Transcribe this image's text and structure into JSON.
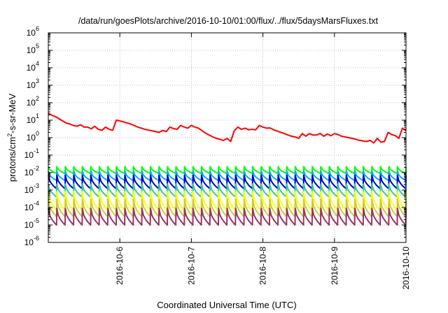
{
  "chart_data": {
    "type": "line",
    "title": "/data/run/goesPlots/archive/2016-10-10/01:00/flux/../flux/5daysMarsFluxes.txt",
    "xlabel": "Coordinated Universal Time (UTC)",
    "ylabel": {
      "prefix": "protons/cm",
      "sup": "2",
      "suffix": "-s-sr-MeV"
    },
    "xlim": [
      "2016-10-05T00:00",
      "2016-10-10T00:00"
    ],
    "ylim": [
      1e-06,
      1000000.0
    ],
    "yscale": "log",
    "grid": true,
    "x_ticks": [
      {
        "label": "2016-10-6",
        "value": "2016-10-06T00:00"
      },
      {
        "label": "2016-10-7",
        "value": "2016-10-07T00:00"
      },
      {
        "label": "2016-10-8",
        "value": "2016-10-08T00:00"
      },
      {
        "label": "2016-10-9",
        "value": "2016-10-09T00:00"
      },
      {
        "label": "2016-10-10",
        "value": "2016-10-10T00:00"
      }
    ],
    "y_ticks": [
      {
        "base": "10",
        "exp": "-6",
        "value": 1e-06
      },
      {
        "base": "10",
        "exp": "-5",
        "value": 1e-05
      },
      {
        "base": "10",
        "exp": "-4",
        "value": 0.0001
      },
      {
        "base": "10",
        "exp": "-3",
        "value": 0.001
      },
      {
        "base": "10",
        "exp": "-2",
        "value": 0.01
      },
      {
        "base": "10",
        "exp": "-1",
        "value": 0.1
      },
      {
        "base": "10",
        "exp": "0",
        "value": 1
      },
      {
        "base": "10",
        "exp": "1",
        "value": 10
      },
      {
        "base": "10",
        "exp": "2",
        "value": 100
      },
      {
        "base": "10",
        "exp": "3",
        "value": 1000
      },
      {
        "base": "10",
        "exp": "4",
        "value": 10000
      },
      {
        "base": "10",
        "exp": "5",
        "value": 100000
      },
      {
        "base": "10",
        "exp": "6",
        "value": 1000000
      }
    ],
    "series": [
      {
        "color": "#ff0000",
        "style": "line",
        "x": [
          "2016-10-05T00:00",
          "2016-10-05T01:12",
          "2016-10-05T02:24",
          "2016-10-05T03:36",
          "2016-10-05T04:48",
          "2016-10-05T06:00",
          "2016-10-05T07:12",
          "2016-10-05T08:24",
          "2016-10-05T09:36",
          "2016-10-05T10:48",
          "2016-10-05T12:00",
          "2016-10-05T13:12",
          "2016-10-05T14:24",
          "2016-10-05T15:36",
          "2016-10-05T16:48",
          "2016-10-05T18:00",
          "2016-10-05T19:12",
          "2016-10-05T20:24",
          "2016-10-05T21:36",
          "2016-10-05T22:48",
          "2016-10-06T00:00",
          "2016-10-06T01:12",
          "2016-10-06T02:24",
          "2016-10-06T03:36",
          "2016-10-06T04:48",
          "2016-10-06T06:00",
          "2016-10-06T07:12",
          "2016-10-06T08:24",
          "2016-10-06T09:36",
          "2016-10-06T10:48",
          "2016-10-06T12:00",
          "2016-10-06T13:12",
          "2016-10-06T14:24",
          "2016-10-06T15:36",
          "2016-10-06T16:48",
          "2016-10-06T18:00",
          "2016-10-06T19:12",
          "2016-10-06T20:24",
          "2016-10-06T21:36",
          "2016-10-06T22:48",
          "2016-10-07T00:00",
          "2016-10-07T01:12",
          "2016-10-07T02:24",
          "2016-10-07T03:36",
          "2016-10-07T04:48",
          "2016-10-07T06:00",
          "2016-10-07T07:12",
          "2016-10-07T08:24",
          "2016-10-07T09:36",
          "2016-10-07T10:48",
          "2016-10-07T12:00",
          "2016-10-07T13:12",
          "2016-10-07T14:24",
          "2016-10-07T15:36",
          "2016-10-07T16:48",
          "2016-10-07T18:00",
          "2016-10-07T19:12",
          "2016-10-07T20:24",
          "2016-10-07T21:36",
          "2016-10-07T22:48",
          "2016-10-08T00:00",
          "2016-10-08T01:12",
          "2016-10-08T02:24",
          "2016-10-08T03:36",
          "2016-10-08T04:48",
          "2016-10-08T06:00",
          "2016-10-08T07:12",
          "2016-10-08T08:24",
          "2016-10-08T09:36",
          "2016-10-08T10:48",
          "2016-10-08T12:00",
          "2016-10-08T13:12",
          "2016-10-08T14:24",
          "2016-10-08T15:36",
          "2016-10-08T16:48",
          "2016-10-08T18:00",
          "2016-10-08T19:12",
          "2016-10-08T20:24",
          "2016-10-08T21:36",
          "2016-10-08T22:48",
          "2016-10-09T00:00",
          "2016-10-09T01:12",
          "2016-10-09T02:24",
          "2016-10-09T03:36",
          "2016-10-09T04:48",
          "2016-10-09T06:00",
          "2016-10-09T07:12",
          "2016-10-09T08:24",
          "2016-10-09T09:36",
          "2016-10-09T10:48",
          "2016-10-09T12:00",
          "2016-10-09T13:12",
          "2016-10-09T14:24",
          "2016-10-09T15:36",
          "2016-10-09T16:48",
          "2016-10-09T18:00",
          "2016-10-09T19:12",
          "2016-10-09T20:24",
          "2016-10-09T21:36",
          "2016-10-09T22:48",
          "2016-10-10T00:00"
        ],
        "values": [
          25,
          19,
          16,
          12,
          9,
          7,
          6,
          5,
          4.5,
          5.5,
          4,
          4,
          3.2,
          4.5,
          3,
          2.6,
          4,
          3,
          2.6,
          10,
          9,
          8,
          7,
          6,
          5,
          4,
          3.5,
          3,
          2.7,
          2.5,
          2.2,
          2,
          2.6,
          2.2,
          4,
          3.3,
          3,
          5,
          4,
          3.5,
          5,
          4,
          3.5,
          2.5,
          1.8,
          1.4,
          1.1,
          0.9,
          0.8,
          0.7,
          0.9,
          0.6,
          2.5,
          4,
          3,
          3.5,
          2.8,
          3,
          2.8,
          5,
          4,
          3.5,
          3.6,
          2.8,
          2.4,
          2,
          1.7,
          1.4,
          1.2,
          1.1,
          0.9,
          1.7,
          1.2,
          1.7,
          1.4,
          1.4,
          1.7,
          1.2,
          1.6,
          1.3,
          1.7,
          1.5,
          1.2,
          1.1,
          1,
          0.9,
          0.8,
          0.7,
          0.65,
          0.6,
          0.7,
          0.5,
          0.9,
          0.55,
          0.6,
          2,
          1.5,
          1.3,
          0.9,
          3.5,
          2.5
        ]
      },
      {
        "color": "#00ff00",
        "style": "sawtooth",
        "peaks": 42,
        "y_low": 0.009,
        "y_high": 0.022
      },
      {
        "color": "#00aaff",
        "style": "sawtooth",
        "peaks": 42,
        "y_low": 0.0035,
        "y_high": 0.012
      },
      {
        "color": "#0000cc",
        "style": "sawtooth",
        "peaks": 42,
        "y_low": 0.0012,
        "y_high": 0.007
      },
      {
        "color": "#33cc99",
        "style": "sawtooth",
        "peaks": 42,
        "y_low": 0.0004,
        "y_high": 0.0022
      },
      {
        "color": "#ffff00",
        "style": "sawtooth",
        "peaks": 42,
        "y_low": 7e-05,
        "y_high": 0.0008
      },
      {
        "color": "#cccc33",
        "style": "sawtooth",
        "peaks": 42,
        "y_low": 3e-05,
        "y_high": 0.0003
      },
      {
        "color": "#993366",
        "style": "sawtooth",
        "peaks": 42,
        "y_low": 1e-05,
        "y_high": 9e-05
      }
    ]
  }
}
